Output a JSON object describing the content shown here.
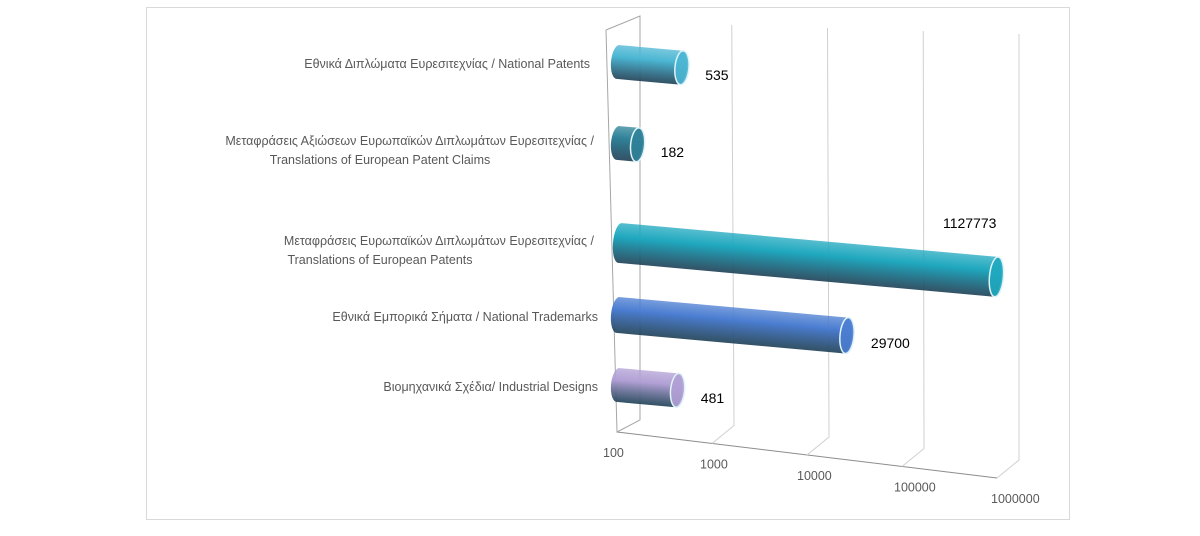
{
  "chart_data": {
    "type": "bar",
    "orientation": "horizontal",
    "style": "3d-cylinder",
    "x_scale": "log",
    "xlim": [
      100,
      1000000
    ],
    "x_ticks": [
      "100",
      "1000",
      "10000",
      "100000",
      "1000000"
    ],
    "grid": true,
    "legend": "none",
    "categories": [
      [
        "Εθνικά Διπλώματα Ευρεσιτεχνίας / National Patents"
      ],
      [
        "Μεταφράσεις Αξιώσεων Ευρωπαϊκών Διπλωμάτων Ευρεσιτεχνίας /",
        "Translations of European Patent Claims"
      ],
      [
        "Μεταφράσεις Ευρωπαϊκών Διπλωμάτων Ευρεσιτεχνίας /",
        "Translations of European Patents"
      ],
      [
        "Εθνικά Εμπορικά Σήματα / National Trademarks"
      ],
      [
        "Βιομηχανικά Σχέδια/ Industrial Designs"
      ]
    ],
    "values": [
      535,
      182,
      1127773,
      29700,
      481
    ],
    "data_labels": [
      "535",
      "182",
      "1127773",
      "29700",
      "481"
    ],
    "colors": [
      "#4bb6d3",
      "#2f8299",
      "#1fa8bf",
      "#4b7dd1",
      "#b1a0d5"
    ]
  }
}
